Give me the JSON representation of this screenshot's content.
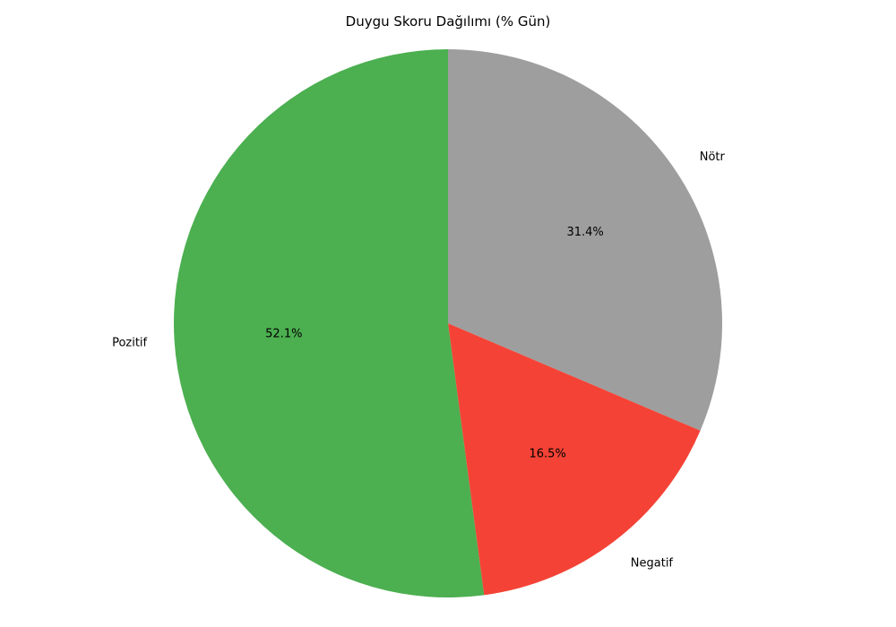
{
  "chart_data": {
    "type": "pie",
    "title": "Duygu Skoru Dağılımı (% Gün)",
    "slices": [
      {
        "label": "Nötr",
        "value": 31.4,
        "percent_label": "31.4%",
        "color": "#9e9e9e"
      },
      {
        "label": "Negatif",
        "value": 16.5,
        "percent_label": "16.5%",
        "color": "#f44336"
      },
      {
        "label": "Pozitif",
        "value": 52.1,
        "percent_label": "52.1%",
        "color": "#4caf50"
      }
    ],
    "start_angle_deg": 90,
    "direction": "clockwise",
    "legend": "none"
  }
}
